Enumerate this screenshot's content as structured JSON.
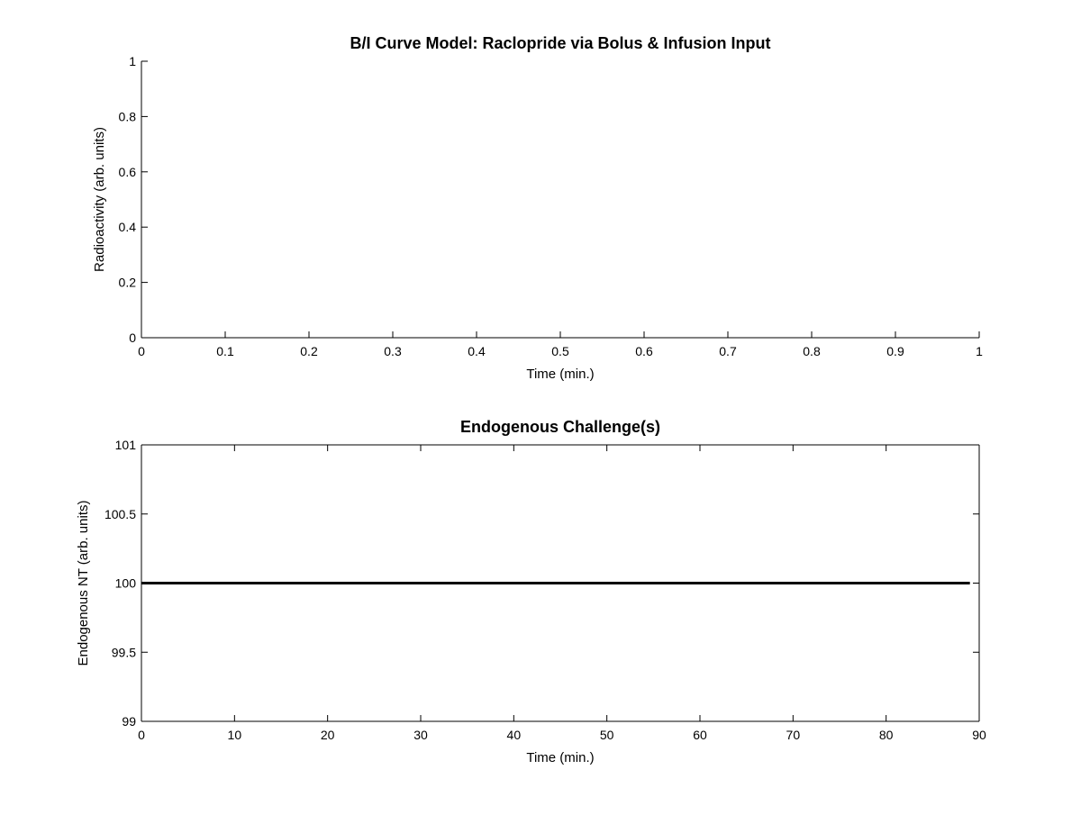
{
  "chart_data": [
    {
      "type": "line",
      "title": "B/I Curve Model: Raclopride via Bolus & Infusion Input",
      "xlabel": "Time (min.)",
      "ylabel": "Radioactivity (arb. units)",
      "xlim": [
        0,
        1
      ],
      "ylim": [
        0,
        1
      ],
      "xticks": [
        0,
        0.1,
        0.2,
        0.3,
        0.4,
        0.5,
        0.6,
        0.7,
        0.8,
        0.9,
        1
      ],
      "yticks": [
        0,
        0.2,
        0.4,
        0.6,
        0.8,
        1
      ],
      "box": false,
      "grid": false,
      "series": []
    },
    {
      "type": "line",
      "title": "Endogenous Challenge(s)",
      "xlabel": "Time (min.)",
      "ylabel": "Endogenous NT (arb. units)",
      "xlim": [
        0,
        90
      ],
      "ylim": [
        99,
        101
      ],
      "xticks": [
        0,
        10,
        20,
        30,
        40,
        50,
        60,
        70,
        80,
        90
      ],
      "yticks": [
        99,
        99.5,
        100,
        100.5,
        101
      ],
      "box": true,
      "grid": false,
      "series": [
        {
          "x": [
            0,
            89
          ],
          "y": [
            100,
            100
          ],
          "color": "#000000"
        }
      ]
    }
  ]
}
